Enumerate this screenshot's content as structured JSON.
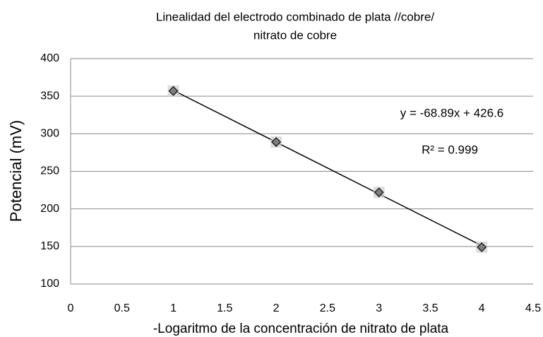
{
  "chart_data": {
    "type": "scatter",
    "title": [
      "Linealidad del electrodo combinado de plata //cobre/",
      "nitrato de cobre"
    ],
    "xlabel": "-Logaritmo de la concentración de nitrato de plata",
    "ylabel": "Potencial (mV)",
    "x": [
      1,
      2,
      3,
      4
    ],
    "series": [
      {
        "color": "#808080",
        "values": [
          357,
          289,
          222,
          149
        ]
      }
    ],
    "trendline": {
      "label": "y = -68.89x + 426.6",
      "slope": -68.89,
      "intercept": 426.6,
      "r2_label": "R² = 0.999",
      "color": "#000000"
    },
    "xlim": [
      0,
      4.5
    ],
    "xticks": [
      0,
      0.5,
      1,
      1.5,
      2,
      2.5,
      3,
      3.5,
      4,
      4.5
    ],
    "ylim": [
      100,
      400
    ],
    "yticks": [
      100,
      150,
      200,
      250,
      300,
      350,
      400
    ],
    "grid": true
  }
}
